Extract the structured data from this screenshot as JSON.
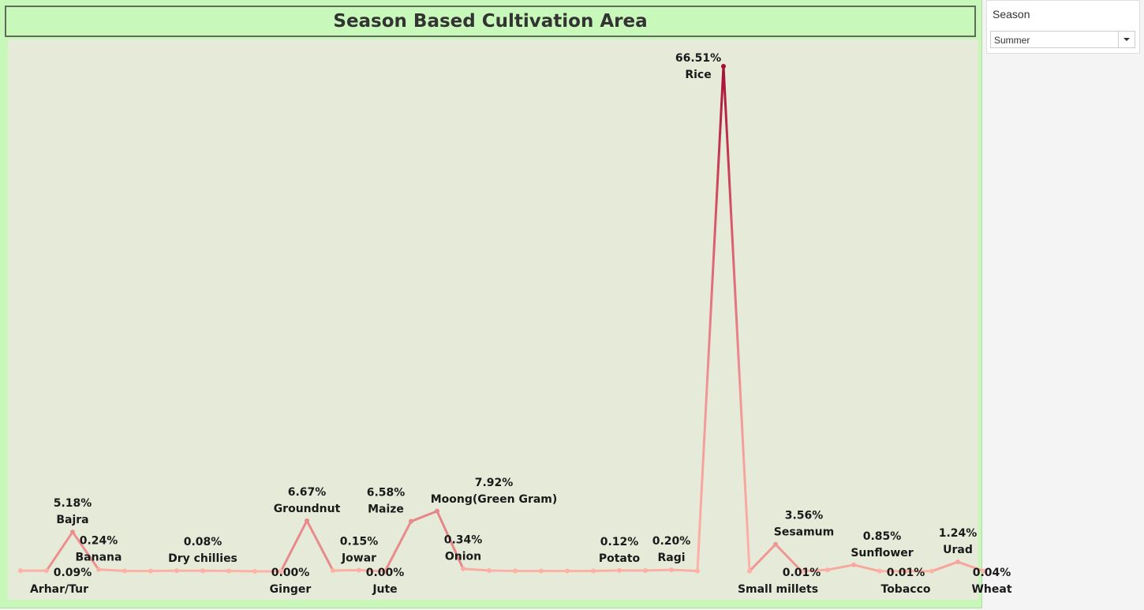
{
  "title": "Season Based Cultivation Area",
  "filter": {
    "label": "Season",
    "selected": "Summer"
  },
  "colors": {
    "low": "#ffb3a7",
    "high": "#a50f36",
    "background": "#c7f7b9",
    "plot_background": "#e6ebd9"
  },
  "chart_data": {
    "type": "line",
    "title": "Season Based Cultivation Area",
    "xlabel": "",
    "ylabel": "",
    "grid": false,
    "ylim": [
      0,
      70
    ],
    "categories": [
      "Arhar/Tur",
      "",
      "Bajra",
      "Banana",
      "",
      "",
      "",
      "Dry chillies",
      "",
      "",
      "Ginger",
      "Groundnut",
      "",
      "Jowar",
      "Jute",
      "Maize",
      "Moong(Green Gram)",
      "Onion",
      "",
      "",
      "",
      "",
      "",
      "Potato",
      "",
      "Ragi",
      "",
      "Rice",
      "",
      "Sesamum",
      "Small millets",
      "",
      "Sunflower",
      "",
      "Tobacco",
      "",
      "Urad",
      "Wheat"
    ],
    "values": [
      0.09,
      0.09,
      5.18,
      0.24,
      0.05,
      0.05,
      0.08,
      0.08,
      0.05,
      0.0,
      0.0,
      6.67,
      0.1,
      0.15,
      0.0,
      6.58,
      7.92,
      0.34,
      0.1,
      0.05,
      0.05,
      0.05,
      0.05,
      0.12,
      0.1,
      0.2,
      0.05,
      66.51,
      0.02,
      3.56,
      0.01,
      0.2,
      0.85,
      0.02,
      0.01,
      0.02,
      1.24,
      0.04
    ],
    "point_labels": [
      {
        "index": 1,
        "value": "0.09%",
        "name": "Arhar/Tur"
      },
      {
        "index": 2,
        "value": "5.18%",
        "name": "Bajra"
      },
      {
        "index": 3,
        "value": "0.24%",
        "name": "Banana"
      },
      {
        "index": 7,
        "value": "0.08%",
        "name": "Dry chillies"
      },
      {
        "index": 10,
        "value": "0.00%",
        "name": "Ginger"
      },
      {
        "index": 11,
        "value": "6.67%",
        "name": "Groundnut"
      },
      {
        "index": 13,
        "value": "0.15%",
        "name": "Jowar"
      },
      {
        "index": 14,
        "value": "0.00%",
        "name": "Jute"
      },
      {
        "index": 15,
        "value": "6.58%",
        "name": "Maize"
      },
      {
        "index": 16,
        "value": "7.92%",
        "name": "Moong(Green Gram)"
      },
      {
        "index": 17,
        "value": "0.34%",
        "name": "Onion"
      },
      {
        "index": 23,
        "value": "0.12%",
        "name": "Potato"
      },
      {
        "index": 25,
        "value": "0.20%",
        "name": "Ragi"
      },
      {
        "index": 27,
        "value": "66.51%",
        "name": "Rice"
      },
      {
        "index": 29,
        "value": "3.56%",
        "name": "Sesamum"
      },
      {
        "index": 30,
        "value": "0.01%",
        "name": "Small millets"
      },
      {
        "index": 32,
        "value": "0.85%",
        "name": "Sunflower"
      },
      {
        "index": 34,
        "value": "0.01%",
        "name": "Tobacco"
      },
      {
        "index": 36,
        "value": "1.24%",
        "name": "Urad"
      },
      {
        "index": 37,
        "value": "0.04%",
        "name": "Wheat"
      }
    ]
  }
}
